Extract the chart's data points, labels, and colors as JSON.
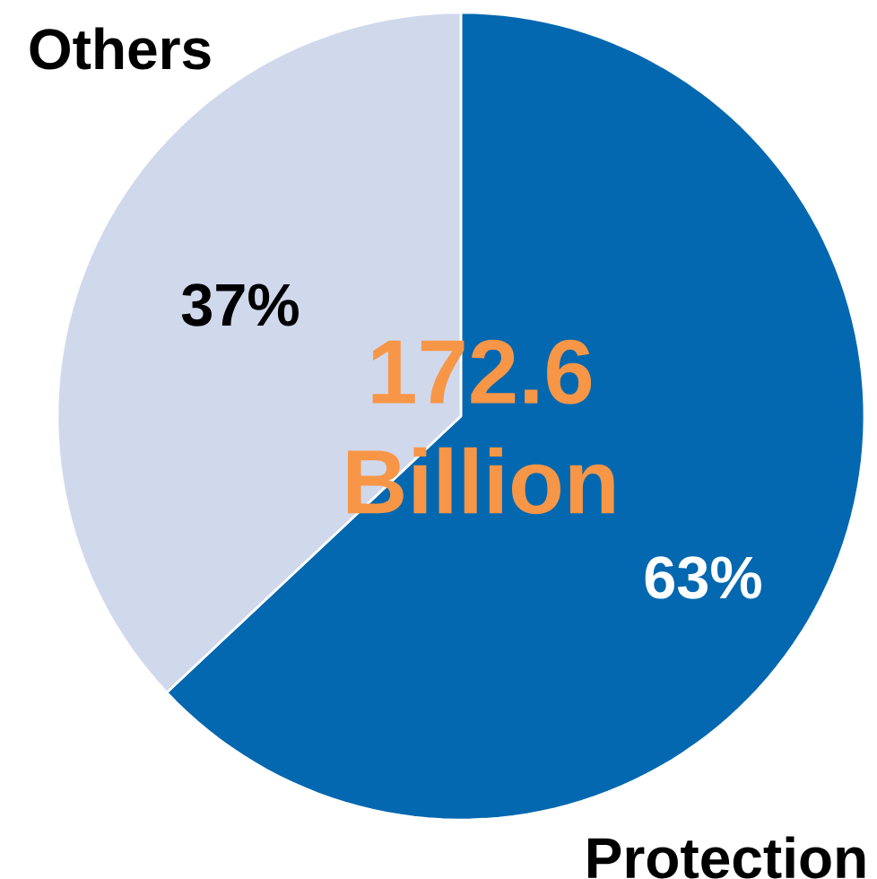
{
  "chart_data": {
    "type": "pie",
    "categories": [
      "Protection",
      "Others"
    ],
    "values": [
      63,
      37
    ],
    "colors": [
      "#0468b0",
      "#d0d8ec"
    ],
    "value_labels": [
      "63%",
      "37%"
    ],
    "annotations": [
      "172.6 Billion"
    ]
  }
}
